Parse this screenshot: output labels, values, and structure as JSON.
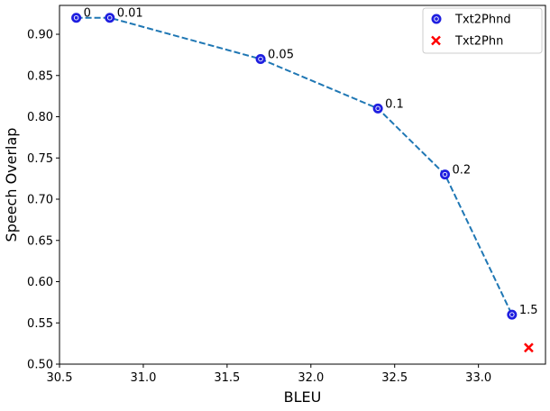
{
  "chart_data": {
    "type": "line",
    "title": "",
    "xlabel": "BLEU",
    "ylabel": "Speech Overlap",
    "xlim": [
      30.5,
      33.4
    ],
    "ylim": [
      0.5,
      0.935
    ],
    "xticks": [
      30.5,
      31.0,
      31.5,
      32.0,
      32.5,
      33.0
    ],
    "xtick_labels": [
      "30.5",
      "31.0",
      "31.5",
      "32.0",
      "32.5",
      "33.0"
    ],
    "yticks": [
      0.5,
      0.55,
      0.6,
      0.65,
      0.7,
      0.75,
      0.8,
      0.85,
      0.9
    ],
    "ytick_labels": [
      "0.50",
      "0.55",
      "0.60",
      "0.65",
      "0.70",
      "0.75",
      "0.80",
      "0.85",
      "0.90"
    ],
    "grid": false,
    "legend_position": "top-right",
    "series": [
      {
        "name": "Txt2Phnd",
        "marker": "circle",
        "line_style": "dashed",
        "marker_color": "#1f1fe0",
        "line_color": "#1f77b4",
        "x": [
          30.6,
          30.8,
          31.7,
          32.4,
          32.8,
          33.2
        ],
        "y": [
          0.92,
          0.92,
          0.87,
          0.81,
          0.73,
          0.56
        ],
        "point_labels": [
          "0",
          "0.01",
          "0.05",
          "0.1",
          "0.2",
          "1.5"
        ]
      },
      {
        "name": "Txt2Phn",
        "marker": "x",
        "line_style": "none",
        "marker_color": "#ff0000",
        "x": [
          33.3
        ],
        "y": [
          0.52
        ]
      }
    ]
  }
}
